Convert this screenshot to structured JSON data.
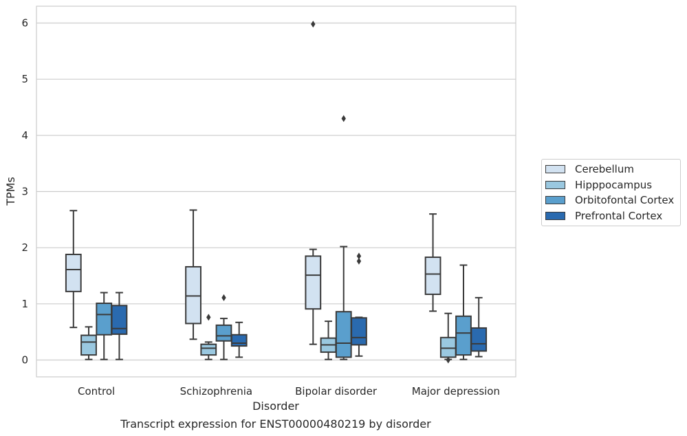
{
  "chart_data": {
    "type": "box",
    "title": "Transcript expression for ENST00000480219 by disorder",
    "xlabel": "Disorder",
    "ylabel": "TPMs",
    "ylim": [
      -0.3,
      6.3
    ],
    "yticks": [
      0,
      1,
      2,
      3,
      4,
      5,
      6
    ],
    "grid": "horizontal",
    "legend_position": "right",
    "categories": [
      "Control",
      "Schizophrenia",
      "Bipolar disorder",
      "Major depression"
    ],
    "series": [
      {
        "name": "Cerebellum",
        "color": "#d2e2f1",
        "boxes": [
          {
            "whisker_low": 0.58,
            "q1": 1.22,
            "median": 1.61,
            "q3": 1.88,
            "whisker_high": 2.66,
            "outliers": []
          },
          {
            "whisker_low": 0.37,
            "q1": 0.65,
            "median": 1.14,
            "q3": 1.66,
            "whisker_high": 2.67,
            "outliers": []
          },
          {
            "whisker_low": 0.28,
            "q1": 0.91,
            "median": 1.51,
            "q3": 1.85,
            "whisker_high": 1.97,
            "outliers": [
              5.98
            ]
          },
          {
            "whisker_low": 0.87,
            "q1": 1.17,
            "median": 1.53,
            "q3": 1.83,
            "whisker_high": 2.6,
            "outliers": []
          }
        ]
      },
      {
        "name": "Hipppocampus",
        "color": "#9ac8e0",
        "boxes": [
          {
            "whisker_low": 0.01,
            "q1": 0.09,
            "median": 0.32,
            "q3": 0.44,
            "whisker_high": 0.59,
            "outliers": []
          },
          {
            "whisker_low": 0.01,
            "q1": 0.09,
            "median": 0.21,
            "q3": 0.28,
            "whisker_high": 0.32,
            "outliers": [
              0.76
            ]
          },
          {
            "whisker_low": 0.01,
            "q1": 0.14,
            "median": 0.27,
            "q3": 0.39,
            "whisker_high": 0.69,
            "outliers": []
          },
          {
            "whisker_low": 0.01,
            "q1": 0.05,
            "median": 0.21,
            "q3": 0.4,
            "whisker_high": 0.83,
            "outliers": [
              0.0
            ]
          }
        ]
      },
      {
        "name": "Orbitofontal Cortex",
        "color": "#5a9fcd",
        "boxes": [
          {
            "whisker_low": 0.01,
            "q1": 0.45,
            "median": 0.81,
            "q3": 1.01,
            "whisker_high": 1.2,
            "outliers": []
          },
          {
            "whisker_low": 0.01,
            "q1": 0.34,
            "median": 0.43,
            "q3": 0.62,
            "whisker_high": 0.74,
            "outliers": [
              1.11
            ]
          },
          {
            "whisker_low": 0.01,
            "q1": 0.05,
            "median": 0.3,
            "q3": 0.86,
            "whisker_high": 2.02,
            "outliers": [
              4.3
            ]
          },
          {
            "whisker_low": 0.01,
            "q1": 0.09,
            "median": 0.48,
            "q3": 0.78,
            "whisker_high": 1.69,
            "outliers": []
          }
        ]
      },
      {
        "name": "Prefrontal Cortex",
        "color": "#2a6aaf",
        "boxes": [
          {
            "whisker_low": 0.01,
            "q1": 0.46,
            "median": 0.56,
            "q3": 0.97,
            "whisker_high": 1.2,
            "outliers": []
          },
          {
            "whisker_low": 0.05,
            "q1": 0.25,
            "median": 0.3,
            "q3": 0.45,
            "whisker_high": 0.67,
            "outliers": []
          },
          {
            "whisker_low": 0.07,
            "q1": 0.27,
            "median": 0.4,
            "q3": 0.75,
            "whisker_high": 0.76,
            "outliers": [
              1.76,
              1.85
            ]
          },
          {
            "whisker_low": 0.06,
            "q1": 0.16,
            "median": 0.29,
            "q3": 0.57,
            "whisker_high": 1.11,
            "outliers": []
          }
        ]
      }
    ]
  }
}
